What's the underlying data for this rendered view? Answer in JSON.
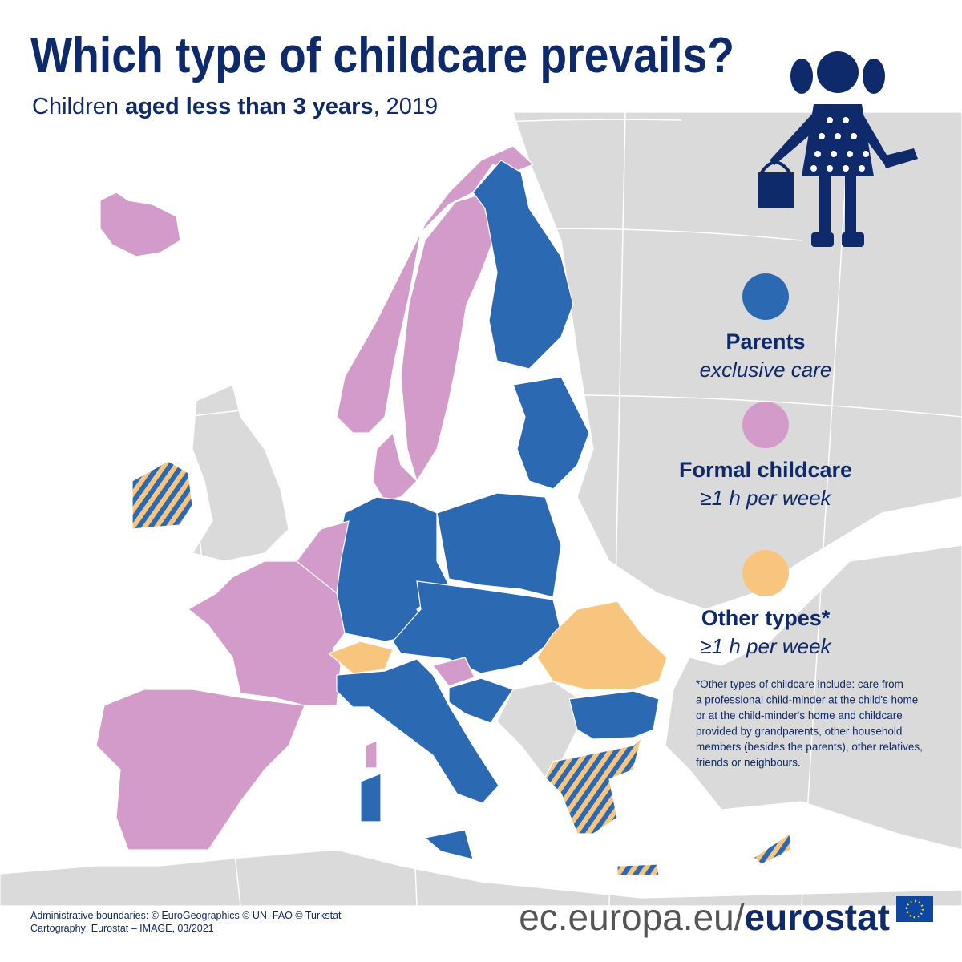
{
  "header": {
    "title": "Which type of childcare prevails?",
    "subtitle": [
      "Children",
      "aged less than 3 years",
      ", 2019"
    ]
  },
  "legend": [
    {
      "label": "Parents",
      "sublabel": "exclusive care",
      "color": "#2b69b2"
    },
    {
      "label": "Formal childcare",
      "sublabel": "≥1 h per week",
      "color": "#d29bc9"
    },
    {
      "label": "Other types*",
      "sublabel": "≥1 h per week",
      "color": "#f8c57f"
    }
  ],
  "footnote": [
    "*Other types of childcare include: care from",
    "a professional child-minder at the child's home",
    "or at the child-minder's home and childcare",
    "provided by grandparents, other household",
    "members (besides the parents), other relatives,",
    "friends or neighbours."
  ],
  "credits": [
    "Administrative boundaries: © EuroGeographics © UN–FAO © Turkstat",
    "Cartography: Eurostat – IMAGE, 03/2021"
  ],
  "footer": {
    "url": "ec.europa.eu/",
    "brand": "eurostat"
  }
}
